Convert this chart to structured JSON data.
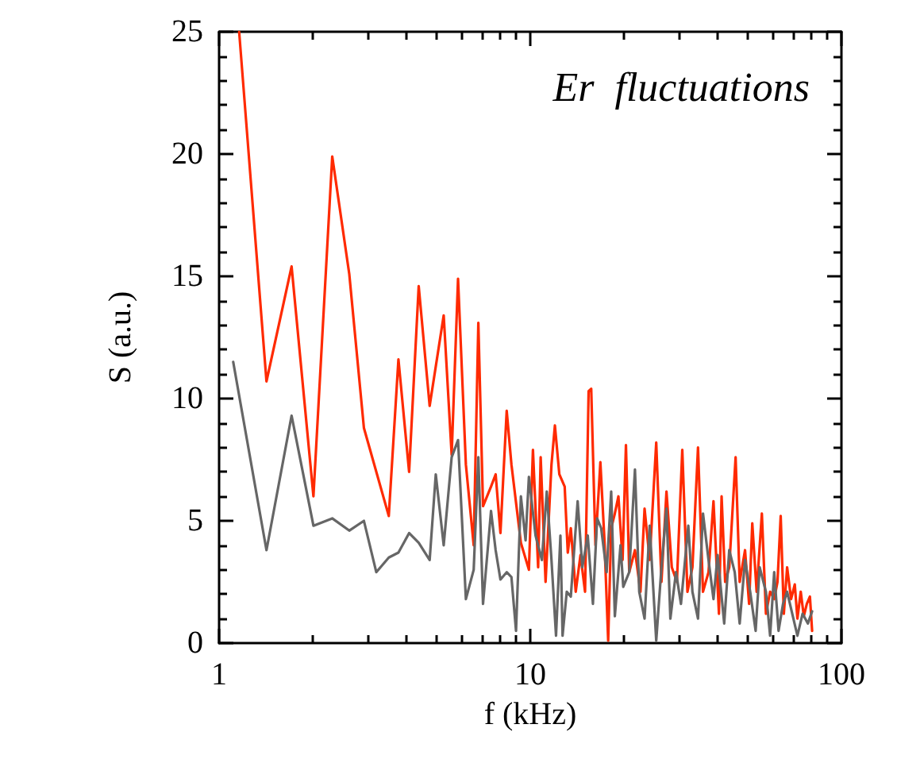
{
  "chart_data": {
    "type": "line",
    "xlabel": "f (kHz)",
    "ylabel": "S (a.u.)",
    "annotations": [
      "Er  fluctuations"
    ],
    "log": "x",
    "marker": "none",
    "line_style": "solid",
    "xlim": [
      1,
      100
    ],
    "ylim": [
      0,
      25
    ],
    "xticks": [
      1,
      {
        "value": 2,
        "label": null
      },
      {
        "value": 3,
        "label": null
      },
      {
        "value": 4,
        "label": null
      },
      {
        "value": 5,
        "label": null
      },
      {
        "value": 6,
        "label": null
      },
      {
        "value": 7,
        "label": null
      },
      {
        "value": 8,
        "label": null
      },
      {
        "value": 9,
        "label": null
      },
      10,
      {
        "value": 20,
        "label": null
      },
      {
        "value": 30,
        "label": null
      },
      {
        "value": 40,
        "label": null
      },
      {
        "value": 50,
        "label": null
      },
      {
        "value": 60,
        "label": null
      },
      {
        "value": 70,
        "label": null
      },
      {
        "value": 80,
        "label": null
      },
      {
        "value": 90,
        "label": null
      },
      100
    ],
    "yticks": [
      0,
      {
        "value": 1,
        "label": null
      },
      {
        "value": 2,
        "label": null
      },
      {
        "value": 3,
        "label": null
      },
      {
        "value": 4,
        "label": null
      },
      5,
      {
        "value": 6,
        "label": null
      },
      {
        "value": 7,
        "label": null
      },
      {
        "value": 8,
        "label": null
      },
      {
        "value": 9,
        "label": null
      },
      10,
      {
        "value": 11,
        "label": null
      },
      {
        "value": 12,
        "label": null
      },
      {
        "value": 13,
        "label": null
      },
      {
        "value": 14,
        "label": null
      },
      15,
      {
        "value": 16,
        "label": null
      },
      {
        "value": 17,
        "label": null
      },
      {
        "value": 18,
        "label": null
      },
      {
        "value": 19,
        "label": null
      },
      20,
      {
        "value": 21,
        "label": null
      },
      {
        "value": 22,
        "label": null
      },
      {
        "value": 23,
        "label": null
      },
      {
        "value": 24,
        "label": null
      },
      25
    ],
    "series": [
      {
        "color": "#ff2a00",
        "x": [
          1.16,
          1.42,
          1.71,
          2.01,
          2.31,
          2.62,
          2.92,
          3.51,
          3.77,
          4.08,
          4.38,
          4.75,
          5.27,
          5.59,
          5.86,
          6.21,
          6.58,
          6.81,
          7.05,
          7.48,
          7.74,
          8.02,
          8.4,
          8.7,
          9.33,
          9.9,
          10.2,
          10.6,
          10.8,
          11.2,
          11.7,
          12.0,
          12.4,
          12.9,
          13.2,
          13.5,
          14.0,
          14.5,
          15.0,
          15.4,
          15.7,
          16.2,
          16.8,
          17.3,
          17.8,
          18.2,
          18.7,
          19.2,
          19.8,
          20.3,
          20.8,
          21.7,
          22.6,
          23.3,
          24.2,
          25.4,
          26.4,
          27.4,
          28.5,
          29.6,
          30.8,
          32.0,
          33.2,
          34.6,
          35.9,
          37.4,
          38.8,
          40.4,
          41.2,
          42.3,
          43.6,
          45.7,
          47.1,
          49.0,
          50.5,
          51.7,
          53.4,
          55.5,
          57.2,
          59.0,
          60.8,
          62.3,
          63.8,
          65.3,
          66.9,
          68.9,
          70.8,
          72.2,
          74.0,
          75.7,
          77.4,
          79.2,
          80.5
        ],
        "values": [
          25,
          10.7,
          15.4,
          6.0,
          19.9,
          15.1,
          8.8,
          5.2,
          11.6,
          7.0,
          14.6,
          9.7,
          13.4,
          7.7,
          14.9,
          7.3,
          4.0,
          13.1,
          5.6,
          6.4,
          6.9,
          4.5,
          9.5,
          7.3,
          4.1,
          3.0,
          7.9,
          3.1,
          7.6,
          2.5,
          7.3,
          8.9,
          6.9,
          6.4,
          3.7,
          4.7,
          2.1,
          3.6,
          2.1,
          10.3,
          10.4,
          4.0,
          7.4,
          4.3,
          0.1,
          4.7,
          5.3,
          6.0,
          3.4,
          8.1,
          2.9,
          3.8,
          2.1,
          5.5,
          3.4,
          8.2,
          2.5,
          6.2,
          3.1,
          2.5,
          7.9,
          2.1,
          3.1,
          8.0,
          2.1,
          2.9,
          5.8,
          1.2,
          6.0,
          2.5,
          3.1,
          7.6,
          2.5,
          3.8,
          1.6,
          4.9,
          2.1,
          5.3,
          1.2,
          2.1,
          1.8,
          2.5,
          5.2,
          1.2,
          3.1,
          1.8,
          2.4,
          1.0,
          2.1,
          1.1,
          1.6,
          1.9,
          0.5
        ]
      },
      {
        "color": "#666666",
        "x": [
          1.11,
          1.42,
          1.71,
          2.01,
          2.31,
          2.62,
          2.92,
          3.2,
          3.51,
          3.77,
          4.08,
          4.38,
          4.75,
          4.97,
          5.27,
          5.59,
          5.86,
          6.21,
          6.58,
          6.81,
          7.05,
          7.48,
          7.74,
          8.02,
          8.4,
          8.7,
          9.0,
          9.33,
          9.66,
          9.9,
          10.4,
          10.9,
          11.3,
          11.7,
          12.1,
          12.5,
          12.7,
          13.1,
          13.5,
          14.2,
          14.7,
          15.3,
          15.9,
          16.4,
          16.9,
          17.6,
          18.2,
          18.7,
          19.5,
          19.9,
          20.8,
          21.7,
          22.4,
          23.3,
          24.2,
          25.4,
          26.4,
          27.4,
          28.2,
          29.4,
          30.5,
          32.2,
          33.2,
          34.6,
          35.9,
          37.4,
          38.8,
          40.0,
          42.0,
          43.6,
          45.4,
          47.1,
          49.0,
          50.9,
          53.0,
          54.6,
          57.2,
          59.0,
          60.8,
          62.8,
          64.9,
          66.9,
          69.5,
          72.2,
          75.0,
          78.0,
          80.5
        ],
        "values": [
          11.5,
          3.8,
          9.3,
          4.8,
          5.1,
          4.6,
          5.0,
          2.9,
          3.5,
          3.7,
          4.5,
          4.1,
          3.4,
          6.9,
          4.0,
          7.6,
          8.3,
          1.8,
          3.0,
          7.6,
          1.6,
          5.4,
          3.8,
          2.6,
          2.9,
          2.7,
          0.5,
          6.0,
          4.2,
          6.8,
          4.4,
          3.4,
          6.2,
          3.4,
          0.3,
          4.4,
          0.3,
          2.1,
          1.9,
          5.8,
          3.1,
          4.4,
          1.6,
          5.1,
          4.7,
          2.9,
          6.2,
          1.1,
          4.0,
          2.3,
          2.9,
          7.1,
          2.1,
          1.0,
          4.8,
          0.1,
          3.1,
          5.5,
          1.0,
          2.9,
          1.6,
          4.8,
          2.1,
          1.0,
          5.3,
          3.4,
          1.8,
          3.6,
          0.8,
          3.8,
          2.9,
          0.8,
          3.4,
          2.1,
          0.5,
          3.1,
          2.1,
          0.3,
          2.9,
          0.5,
          1.6,
          2.1,
          1.2,
          0.3,
          1.2,
          0.8,
          1.3
        ]
      }
    ]
  }
}
